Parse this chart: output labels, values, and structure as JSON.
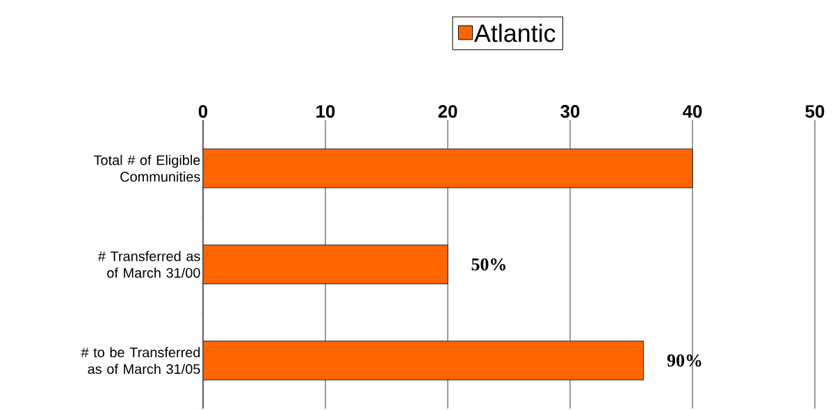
{
  "chart_data": {
    "type": "bar",
    "orientation": "horizontal",
    "categories": [
      "Total # of Eligible Communities",
      "# Transferred as of March 31/00",
      "# to be Transferred as of March 31/05"
    ],
    "series": [
      {
        "name": "Atlantic",
        "color": "#ff6600",
        "values": [
          40,
          20,
          36
        ]
      }
    ],
    "annotations": [
      {
        "text": "50%",
        "x": 20,
        "y": "# Transferred as of March 31/00"
      },
      {
        "text": "90%",
        "x": 36,
        "y": "# to be Transferred as of March 31/05"
      }
    ],
    "xlim": [
      0,
      50
    ],
    "xticks": [
      0,
      10,
      20,
      30,
      40,
      50
    ],
    "grid": "x",
    "legend": "top"
  }
}
